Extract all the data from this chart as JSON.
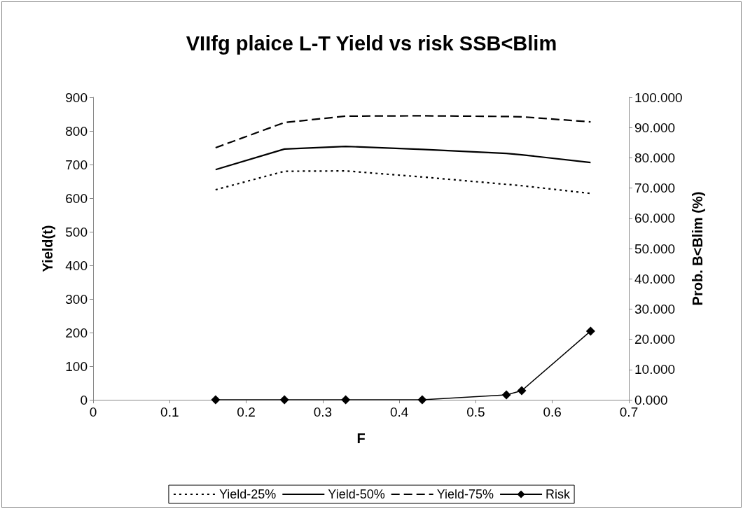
{
  "chart_data": {
    "type": "line",
    "title": "VIIfg plaice L-T Yield vs risk SSB<Blim",
    "xlabel": "F",
    "ylabel": "Yield(t)",
    "y2label": "Prob. B<Blim (%)",
    "x": [
      0.16,
      0.25,
      0.33,
      0.43,
      0.54,
      0.56,
      0.65
    ],
    "series": [
      {
        "name": "Yield-25%",
        "color": "#000000",
        "line_style": "dotted",
        "marker": "none",
        "values": [
          625,
          680,
          681,
          663,
          641,
          637,
          614
        ]
      },
      {
        "name": "Yield-50%",
        "color": "#000000",
        "line_style": "solid",
        "marker": "none",
        "values": [
          685,
          746,
          754,
          745,
          733,
          729,
          706
        ]
      },
      {
        "name": "Yield-75%",
        "color": "#000000",
        "line_style": "dashed",
        "marker": "none",
        "values": [
          750,
          825,
          844,
          845,
          843,
          842,
          827
        ]
      },
      {
        "name": "Risk",
        "color": "#000000",
        "line_style": "solid",
        "marker": "diamond",
        "axis": "y2",
        "values": [
          0,
          0,
          0,
          0,
          1.6,
          3.0,
          22.7
        ]
      }
    ],
    "xlim": [
      0,
      0.7
    ],
    "xticks": [
      0,
      0.1,
      0.2,
      0.3,
      0.4,
      0.5,
      0.6,
      0.7
    ],
    "ylim": [
      0,
      900
    ],
    "yticks": [
      0,
      100,
      200,
      300,
      400,
      500,
      600,
      700,
      800,
      900
    ],
    "y2lim": [
      0,
      100
    ],
    "y2ticks": [
      {
        "value": 0,
        "label": "0.000"
      },
      {
        "value": 10,
        "label": "10.000"
      },
      {
        "value": 20,
        "label": "20.000"
      },
      {
        "value": 30,
        "label": "30.000"
      },
      {
        "value": 40,
        "label": "40.000"
      },
      {
        "value": 50,
        "label": "50.000"
      },
      {
        "value": 60,
        "label": "60.000"
      },
      {
        "value": 70,
        "label": "70.000"
      },
      {
        "value": 80,
        "label": "80.000"
      },
      {
        "value": 90,
        "label": "90.000"
      },
      {
        "value": 100,
        "label": "100.000"
      }
    ],
    "grid": false,
    "legend": "bottom"
  }
}
